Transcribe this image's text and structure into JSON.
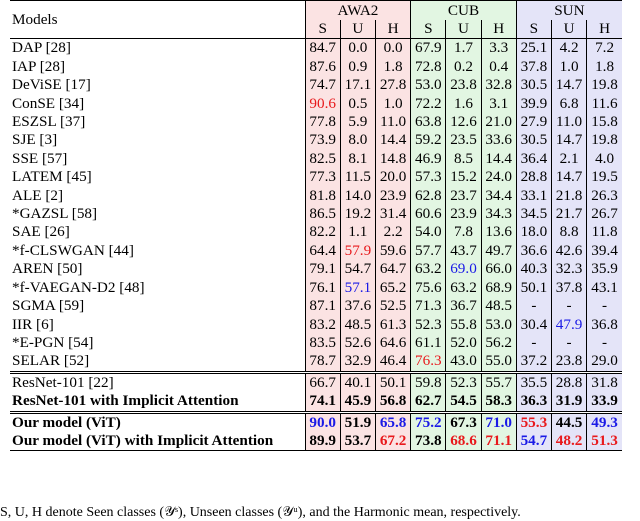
{
  "header": {
    "models_label": "Models",
    "groups": [
      "AWA2",
      "CUB",
      "SUN"
    ],
    "sub_labels": [
      "S",
      "U",
      "H"
    ]
  },
  "rows": [
    {
      "model": "DAP [28]",
      "values": [
        "84.7",
        "0.0",
        "0.0",
        "67.9",
        "1.7",
        "3.3",
        "25.1",
        "4.2",
        "7.2"
      ]
    },
    {
      "model": "IAP [28]",
      "values": [
        "87.6",
        "0.9",
        "1.8",
        "72.8",
        "0.2",
        "0.4",
        "37.8",
        "1.0",
        "1.8"
      ]
    },
    {
      "model": "DeViSE [17]",
      "values": [
        "74.7",
        "17.1",
        "27.8",
        "53.0",
        "23.8",
        "32.8",
        "30.5",
        "14.7",
        "19.8"
      ]
    },
    {
      "model": "ConSE [34]",
      "values": [
        "90.6",
        "0.5",
        "1.0",
        "72.2",
        "1.6",
        "3.1",
        "39.9",
        "6.8",
        "11.6"
      ]
    },
    {
      "model": "ESZSL [37]",
      "values": [
        "77.8",
        "5.9",
        "11.0",
        "63.8",
        "12.6",
        "21.0",
        "27.9",
        "11.0",
        "15.8"
      ]
    },
    {
      "model": "SJE [3]",
      "values": [
        "73.9",
        "8.0",
        "14.4",
        "59.2",
        "23.5",
        "33.6",
        "30.5",
        "14.7",
        "19.8"
      ]
    },
    {
      "model": "SSE [57]",
      "values": [
        "82.5",
        "8.1",
        "14.8",
        "46.9",
        "8.5",
        "14.4",
        "36.4",
        "2.1",
        "4.0"
      ]
    },
    {
      "model": "LATEM [45]",
      "values": [
        "77.3",
        "11.5",
        "20.0",
        "57.3",
        "15.2",
        "24.0",
        "28.8",
        "14.7",
        "19.5"
      ]
    },
    {
      "model": "ALE [2]",
      "values": [
        "81.8",
        "14.0",
        "23.9",
        "62.8",
        "23.7",
        "34.4",
        "33.1",
        "21.8",
        "26.3"
      ]
    },
    {
      "model": "*GAZSL [58]",
      "values": [
        "86.5",
        "19.2",
        "31.4",
        "60.6",
        "23.9",
        "34.3",
        "34.5",
        "21.7",
        "26.7"
      ]
    },
    {
      "model": "SAE [26]",
      "values": [
        "82.2",
        "1.1",
        "2.2",
        "54.0",
        "7.8",
        "13.6",
        "18.0",
        "8.8",
        "11.8"
      ]
    },
    {
      "model": "*f-CLSWGAN [44]",
      "values": [
        "64.4",
        "57.9",
        "59.6",
        "57.7",
        "43.7",
        "49.7",
        "36.6",
        "42.6",
        "39.4"
      ]
    },
    {
      "model": "AREN [50]",
      "values": [
        "79.1",
        "54.7",
        "64.7",
        "63.2",
        "69.0",
        "66.0",
        "40.3",
        "32.3",
        "35.9"
      ]
    },
    {
      "model": "*f-VAEGAN-D2 [48]",
      "values": [
        "76.1",
        "57.1",
        "65.2",
        "75.6",
        "63.2",
        "68.9",
        "50.1",
        "37.8",
        "43.1"
      ]
    },
    {
      "model": "SGMA [59]",
      "values": [
        "87.1",
        "37.6",
        "52.5",
        "71.3",
        "36.7",
        "48.5",
        "-",
        "-",
        "-"
      ]
    },
    {
      "model": "IIR [6]",
      "values": [
        "83.2",
        "48.5",
        "61.3",
        "52.3",
        "55.8",
        "53.0",
        "30.4",
        "47.9",
        "36.8"
      ]
    },
    {
      "model": "*E-PGN [54]",
      "values": [
        "83.5",
        "52.6",
        "64.6",
        "61.1",
        "52.0",
        "56.2",
        "-",
        "-",
        "-"
      ]
    },
    {
      "model": "SELAR [52]",
      "values": [
        "78.7",
        "32.9",
        "46.4",
        "76.3",
        "43.0",
        "55.0",
        "37.2",
        "23.8",
        "29.0"
      ]
    },
    {
      "model": "ResNet-101 [22]",
      "values": [
        "66.7",
        "40.1",
        "50.1",
        "59.8",
        "52.3",
        "55.7",
        "35.5",
        "28.8",
        "31.8"
      ]
    },
    {
      "model": "ResNet-101 with Implicit Attention",
      "values": [
        "74.1",
        "45.9",
        "56.8",
        "62.7",
        "54.5",
        "58.3",
        "36.3",
        "31.9",
        "33.9"
      ]
    },
    {
      "model": "Our model (ViT)",
      "values": [
        "90.0",
        "51.9",
        "65.8",
        "75.2",
        "67.3",
        "71.0",
        "55.3",
        "44.5",
        "49.3"
      ]
    },
    {
      "model": "Our model (ViT) with Implicit Attention",
      "values": [
        "89.9",
        "53.7",
        "67.2",
        "73.8",
        "68.6",
        "71.1",
        "54.7",
        "48.2",
        "51.3"
      ]
    }
  ],
  "styling": {
    "highlight_red": "#e8191c",
    "highlight_blue": "#1a1ae6",
    "awa2_bg": "#fbe3e3",
    "cub_bg": "#e2f6e2",
    "sun_bg": "#e4e4f8"
  },
  "footnote": "S, U, H denote Seen classes (𝒴ˢ), Unseen classes (𝒴ᵘ), and the Harmonic mean, respectively."
}
